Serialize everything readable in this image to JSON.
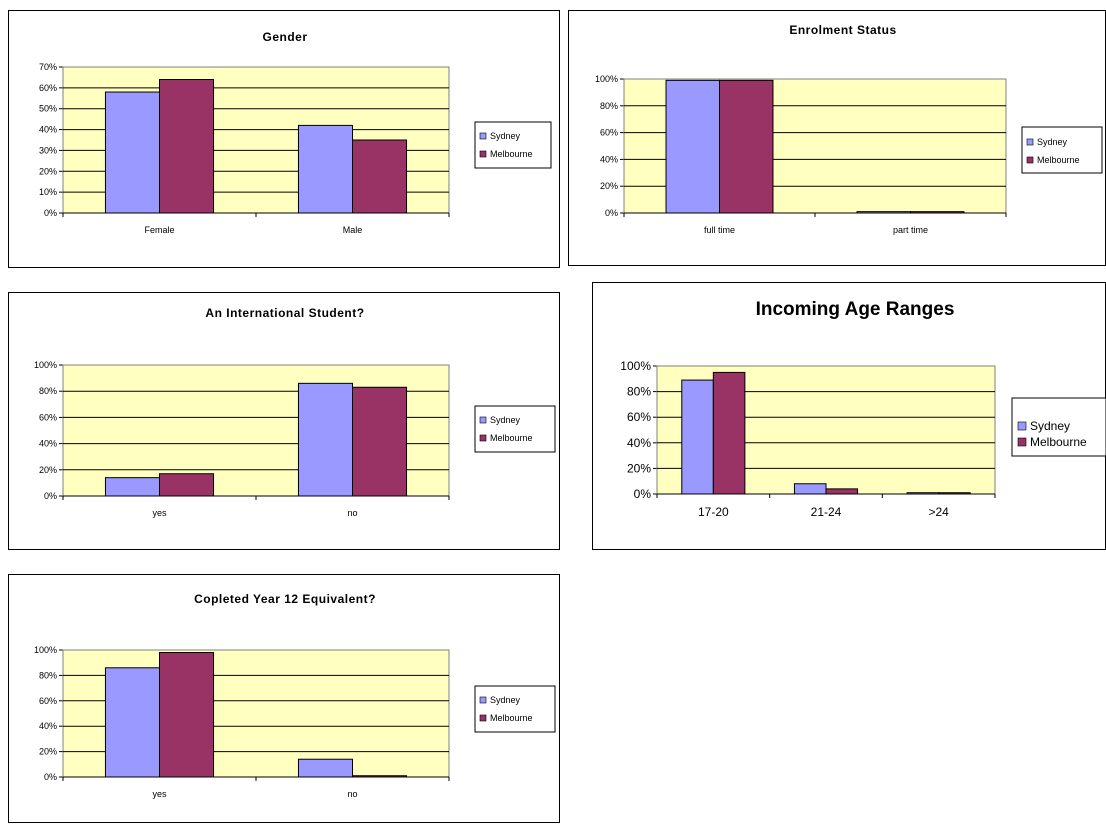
{
  "colors": {
    "sydney": "#9999ff",
    "melbourne": "#993366",
    "plot_bg": "#ffffc0"
  },
  "legend": [
    "Sydney",
    "Melbourne"
  ],
  "chart_data": [
    {
      "id": "gender",
      "type": "bar",
      "title": "Gender",
      "categories": [
        "Female",
        "Male"
      ],
      "series": [
        {
          "name": "Sydney",
          "values": [
            58,
            42
          ]
        },
        {
          "name": "Melbourne",
          "values": [
            64,
            35
          ]
        }
      ],
      "yticks": [
        "0%",
        "10%",
        "20%",
        "30%",
        "40%",
        "50%",
        "60%",
        "70%"
      ],
      "ylim": [
        0,
        70
      ],
      "grid": true,
      "legend_position": "right"
    },
    {
      "id": "enrolment",
      "type": "bar",
      "title": "Enrolment Status",
      "categories": [
        "full time",
        "part time"
      ],
      "series": [
        {
          "name": "Sydney",
          "values": [
            99,
            1
          ]
        },
        {
          "name": "Melbourne",
          "values": [
            99,
            1
          ]
        }
      ],
      "yticks": [
        "0%",
        "20%",
        "40%",
        "60%",
        "80%",
        "100%"
      ],
      "ylim": [
        0,
        100
      ],
      "grid": true,
      "legend_position": "right"
    },
    {
      "id": "international",
      "type": "bar",
      "title": "An International Student?",
      "categories": [
        "yes",
        "no"
      ],
      "series": [
        {
          "name": "Sydney",
          "values": [
            14,
            86
          ]
        },
        {
          "name": "Melbourne",
          "values": [
            17,
            83
          ]
        }
      ],
      "yticks": [
        "0%",
        "20%",
        "40%",
        "60%",
        "80%",
        "100%"
      ],
      "ylim": [
        0,
        100
      ],
      "grid": true,
      "legend_position": "right"
    },
    {
      "id": "age",
      "type": "bar",
      "title": "Incoming Age Ranges",
      "categories": [
        "17-20",
        "21-24",
        ">24"
      ],
      "series": [
        {
          "name": "Sydney",
          "values": [
            89,
            8,
            1
          ]
        },
        {
          "name": "Melbourne",
          "values": [
            95,
            4,
            1
          ]
        }
      ],
      "yticks": [
        "0%",
        "20%",
        "40%",
        "60%",
        "80%",
        "100%"
      ],
      "ylim": [
        0,
        100
      ],
      "grid": true,
      "legend_position": "right"
    },
    {
      "id": "year12",
      "type": "bar",
      "title": "Copleted Year 12 Equivalent?",
      "categories": [
        "yes",
        "no"
      ],
      "series": [
        {
          "name": "Sydney",
          "values": [
            86,
            14
          ]
        },
        {
          "name": "Melbourne",
          "values": [
            98,
            1
          ]
        }
      ],
      "yticks": [
        "0%",
        "20%",
        "40%",
        "60%",
        "80%",
        "100%"
      ],
      "ylim": [
        0,
        100
      ],
      "grid": true,
      "legend_position": "right"
    }
  ]
}
